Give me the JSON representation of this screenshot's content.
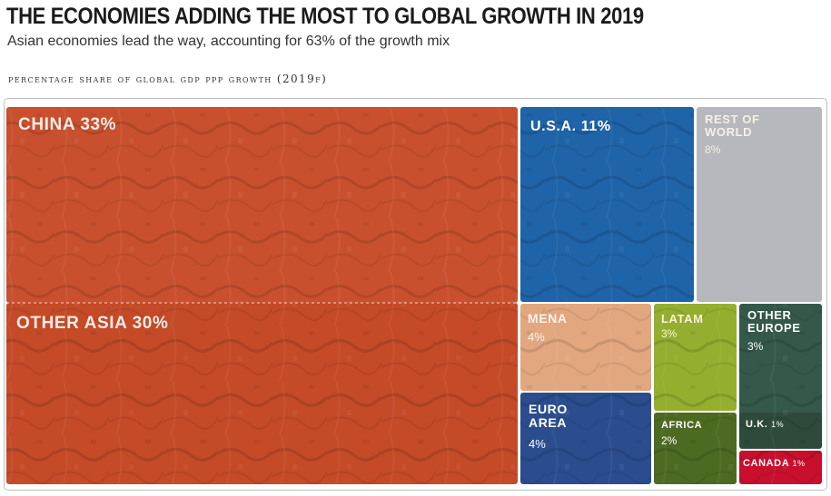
{
  "header": {
    "title": "THE ECONOMIES ADDING THE MOST TO GLOBAL GROWTH IN 2019",
    "subtitle": "Asian economies lead the way, accounting for 63% of the growth mix",
    "caption": "PERCENTAGE SHARE OF GLOBAL GDP PPP GROWTH (2019F)"
  },
  "chart_data": {
    "type": "treemap",
    "title": "THE ECONOMIES ADDING THE MOST TO GLOBAL GROWTH IN 2019",
    "subtitle": "Asian economies lead the way, accounting for 63% of the growth mix",
    "unit": "%",
    "items": [
      {
        "name": "CHINA",
        "label": "CHINA 33%",
        "value": 33,
        "color": "#c9502e"
      },
      {
        "name": "OTHER ASIA",
        "label": "OTHER ASIA 30%",
        "value": 30,
        "color": "#c44a28"
      },
      {
        "name": "U.S.A.",
        "label": "U.S.A. 11%",
        "value": 11,
        "color": "#1f63a8"
      },
      {
        "name": "REST OF WORLD",
        "label": "REST OF WORLD",
        "value_label": "8%",
        "value": 8,
        "color": "#b6b8bd"
      },
      {
        "name": "MENA",
        "label": "MENA",
        "value_label": "4%",
        "value": 4,
        "color": "#e2a77f"
      },
      {
        "name": "EURO AREA",
        "label": "EURO AREA",
        "value_label": "4%",
        "value": 4,
        "color": "#2b4d8e"
      },
      {
        "name": "LATAM",
        "label": "LATAM",
        "value_label": "3%",
        "value": 3,
        "color": "#94ae2f"
      },
      {
        "name": "OTHER EUROPE",
        "label": "OTHER EUROPE",
        "value_label": "3%",
        "value": 3,
        "color": "#34584a"
      },
      {
        "name": "AFRICA",
        "label": "AFRICA",
        "value_label": "2%",
        "value": 2,
        "color": "#4d6a22"
      },
      {
        "name": "U.K.",
        "label": "U.K.",
        "value_label": "1%",
        "value": 1,
        "color": "#2d4a3b"
      },
      {
        "name": "CANADA",
        "label": "CANADA",
        "value_label": "1%",
        "value": 1,
        "color": "#c8102e"
      }
    ]
  }
}
